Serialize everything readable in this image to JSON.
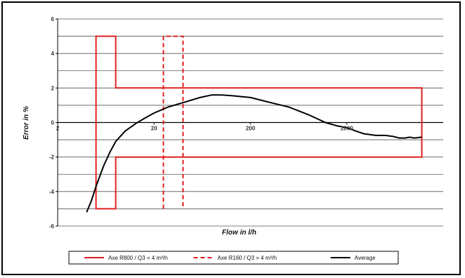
{
  "chart_data": {
    "type": "line",
    "xlabel": "Flow in l/h",
    "ylabel": "Error in %",
    "xscale": "log",
    "xlim": [
      2,
      20000
    ],
    "ylim": [
      -6,
      6
    ],
    "x_ticks": [
      2,
      20,
      200,
      2000
    ],
    "y_ticks": [
      -6,
      -4,
      -2,
      0,
      2,
      4,
      6
    ],
    "grid": "horizontal",
    "legend_position": "bottom",
    "series": [
      {
        "name": "Axe R800 / Q3 = 4 m³/h",
        "color": "#e02020",
        "style": "solid",
        "x": [
          5,
          5,
          8,
          8,
          12000,
          12000,
          8,
          8,
          5,
          5
        ],
        "y": [
          -5,
          5,
          5,
          2,
          2,
          -2,
          -2,
          -5,
          -5,
          5
        ]
      },
      {
        "name": "Axe R160 / Q3 = 4 m³/h",
        "color": "#e02020",
        "style": "dashed",
        "x": [
          25,
          25,
          40,
          40
        ],
        "y": [
          -5,
          5,
          5,
          -5
        ]
      },
      {
        "name": "Average",
        "color": "#000000",
        "style": "solid",
        "x": [
          4,
          4.5,
          5,
          6,
          7,
          8,
          10,
          13,
          16,
          20,
          28,
          40,
          60,
          80,
          100,
          130,
          200,
          300,
          500,
          800,
          1200,
          1600,
          2000,
          2500,
          3000,
          4000,
          5000,
          6000,
          7000,
          8000,
          9000,
          10000,
          12000
        ],
        "y": [
          -5.2,
          -4.5,
          -3.7,
          -2.5,
          -1.7,
          -1.1,
          -0.5,
          -0.05,
          0.25,
          0.55,
          0.9,
          1.15,
          1.45,
          1.6,
          1.6,
          1.55,
          1.45,
          1.2,
          0.9,
          0.45,
          0.0,
          -0.2,
          -0.3,
          -0.5,
          -0.65,
          -0.75,
          -0.75,
          -0.8,
          -0.9,
          -0.9,
          -0.85,
          -0.9,
          -0.85
        ]
      }
    ]
  }
}
